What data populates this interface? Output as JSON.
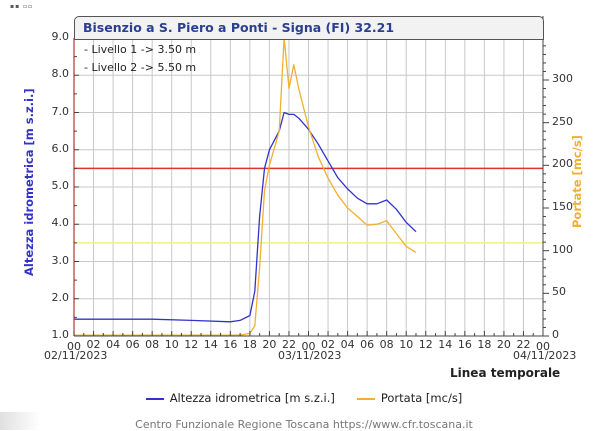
{
  "header": {
    "title": "Bisenzio a S. Piero a Ponti - Signa (FI) 32.21",
    "levels": [
      "- Livello 1 -> 3.50 m",
      "- Livello 2 -> 5.50 m"
    ]
  },
  "axes": {
    "left_label": "Altezza idrometrica [m s.z.i.]",
    "right_label": "Portate [mc/s]",
    "x_label": "Linea temporale",
    "left_ticks": [
      "9.0",
      "8.0",
      "7.0",
      "6.0",
      "5.0",
      "4.0",
      "3.0",
      "2.0",
      "1.0"
    ],
    "right_ticks": [
      "300",
      "250",
      "200",
      "150",
      "100",
      "50",
      "0"
    ],
    "x_ticks": [
      "00",
      "02",
      "04",
      "06",
      "08",
      "10",
      "12",
      "14",
      "16",
      "18",
      "20",
      "22",
      "00",
      "02",
      "04",
      "06",
      "08",
      "10",
      "12",
      "14",
      "16",
      "18",
      "20",
      "22",
      "00"
    ],
    "x_dates": [
      "02/11/2023",
      "03/11/2023",
      "04/11/2023"
    ]
  },
  "legend": {
    "items": [
      {
        "label": "Altezza idrometrica [m s.z.i.]",
        "color": "#3333cc"
      },
      {
        "label": "Portata [mc/s]",
        "color": "#f0b030"
      }
    ]
  },
  "footer": {
    "credit": "Centro Funzionale Regione Toscana https://www.cfr.toscana.it"
  },
  "colors": {
    "level_line": "#3333cc",
    "discharge_line": "#f0b030",
    "threshold_1": "#f5f07a",
    "threshold_2": "#e03030",
    "grid": "#c8c8c8"
  },
  "chart_data": {
    "type": "line",
    "title": "Bisenzio a S. Piero a Ponti - Signa (FI) 32.21",
    "xlabel": "Linea temporale",
    "ylabel": "Altezza idrometrica [m s.z.i.]",
    "y2label": "Portate [mc/s]",
    "ylim": [
      1.0,
      9.0
    ],
    "y2lim": [
      0,
      350
    ],
    "xrange": [
      "02/11/2023 00:00",
      "04/11/2023 00:00"
    ],
    "grid": true,
    "legend_position": "bottom",
    "thresholds": [
      {
        "name": "Livello 1",
        "value": 3.5,
        "unit": "m",
        "color": "#f5f07a"
      },
      {
        "name": "Livello 2",
        "value": 5.5,
        "unit": "m",
        "color": "#e03030"
      }
    ],
    "x_hours": [
      0,
      4,
      8,
      12,
      16,
      17,
      18,
      18.5,
      19,
      19.5,
      20,
      21,
      21.5,
      22,
      22.5,
      23,
      24,
      25,
      26,
      27,
      28,
      29,
      30,
      31,
      32,
      33,
      34,
      35
    ],
    "series": [
      {
        "name": "Altezza idrometrica [m s.z.i.]",
        "axis": "left",
        "color": "#3333cc",
        "values": [
          1.45,
          1.45,
          1.45,
          1.42,
          1.38,
          1.42,
          1.55,
          2.2,
          4.2,
          5.5,
          6.0,
          6.5,
          7.0,
          6.95,
          6.95,
          6.85,
          6.55,
          6.15,
          5.7,
          5.25,
          4.95,
          4.7,
          4.55,
          4.55,
          4.65,
          4.4,
          4.05,
          3.8
        ]
      },
      {
        "name": "Portata [mc/s]",
        "axis": "right",
        "color": "#f0b030",
        "values": [
          1,
          1,
          1,
          1,
          1,
          1,
          3,
          12,
          80,
          170,
          200,
          240,
          350,
          290,
          318,
          290,
          245,
          210,
          185,
          165,
          150,
          140,
          130,
          131,
          135,
          120,
          105,
          98
        ]
      }
    ]
  }
}
